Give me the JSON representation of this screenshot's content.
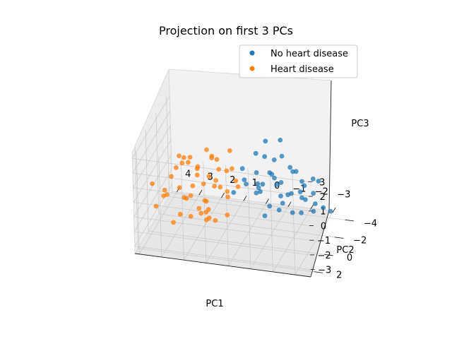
{
  "chart_data": {
    "type": "scatter",
    "projection": "3d",
    "title": "Projection on first 3 PCs",
    "xlabel": "PC1",
    "ylabel": "PC2",
    "zlabel": "PC3",
    "xlim": [
      -3.7,
      4.2
    ],
    "ylim": [
      -4.6,
      2.6
    ],
    "zlim": [
      -3.5,
      3.4
    ],
    "xticks": [
      "4",
      "3",
      "2",
      "1",
      "0",
      "−1",
      "−2",
      "−3"
    ],
    "yticks": [
      "−4",
      "−2",
      "0",
      "2"
    ],
    "zticks": [
      "3",
      "2",
      "1",
      "0",
      "−1",
      "−2",
      "−3"
    ],
    "grid": true,
    "legend": "top-right",
    "series": [
      {
        "name": "No heart disease",
        "color": "#1f77b4",
        "points": [
          [
            -2.6,
            -2.8,
            -1.2
          ],
          [
            -2.3,
            -2.4,
            -0.5
          ],
          [
            -2.0,
            -3.1,
            -1.8
          ],
          [
            -1.8,
            -2.0,
            -0.9
          ],
          [
            -1.5,
            -2.6,
            -1.4
          ],
          [
            -1.2,
            -1.8,
            -0.3
          ],
          [
            -1.0,
            -3.3,
            -2.0
          ],
          [
            -0.8,
            -2.2,
            0.2
          ],
          [
            -0.5,
            -1.6,
            -0.8
          ],
          [
            -0.3,
            -2.9,
            -1.1
          ],
          [
            -2.9,
            -1.5,
            -1.6
          ],
          [
            -2.4,
            -1.2,
            -0.2
          ],
          [
            -1.9,
            -3.6,
            -1.0
          ],
          [
            -1.6,
            -1.0,
            0.4
          ],
          [
            -1.3,
            -2.4,
            -1.9
          ],
          [
            -1.1,
            -0.8,
            -1.2
          ],
          [
            -0.7,
            -3.0,
            -0.4
          ],
          [
            -0.4,
            -1.4,
            0.6
          ],
          [
            -0.1,
            -2.5,
            -1.5
          ],
          [
            0.2,
            -1.9,
            -0.6
          ],
          [
            -2.7,
            -3.4,
            -0.7
          ],
          [
            -2.2,
            -2.1,
            -2.2
          ],
          [
            -1.7,
            -2.8,
            0.1
          ],
          [
            -1.4,
            -1.3,
            -1.7
          ],
          [
            -0.9,
            -2.7,
            0.8
          ],
          [
            -0.6,
            -0.9,
            -0.1
          ],
          [
            0.0,
            -3.2,
            -1.3
          ],
          [
            0.4,
            -2.1,
            0.3
          ],
          [
            -3.1,
            -2.5,
            -1.9
          ],
          [
            -2.5,
            -1.7,
            -1.0
          ],
          [
            -2.1,
            -0.9,
            -1.5
          ],
          [
            -1.6,
            -3.8,
            -0.5
          ],
          [
            -1.2,
            -2.9,
            1.0
          ],
          [
            -0.8,
            -1.1,
            -2.1
          ],
          [
            -0.2,
            -2.2,
            1.4
          ],
          [
            0.5,
            -2.8,
            -0.9
          ],
          [
            -3.3,
            -3.0,
            -2.4
          ],
          [
            -2.8,
            -2.0,
            0.3
          ],
          [
            -1.9,
            -1.5,
            1.2
          ],
          [
            -1.0,
            -3.5,
            1.7
          ],
          [
            -0.6,
            -2.4,
            2.2
          ],
          [
            0.7,
            -1.6,
            -1.1
          ],
          [
            -2.4,
            -3.9,
            -2.6
          ],
          [
            -1.4,
            -0.6,
            0.9
          ],
          [
            -0.3,
            -3.4,
            0.5
          ]
        ]
      },
      {
        "name": "Heart disease",
        "color": "#ff7f0e",
        "points": [
          [
            2.5,
            1.0,
            0.4
          ],
          [
            2.1,
            0.6,
            -0.3
          ],
          [
            1.8,
            1.4,
            0.9
          ],
          [
            1.5,
            0.2,
            -0.8
          ],
          [
            1.2,
            1.7,
            0.2
          ],
          [
            0.9,
            0.8,
            1.1
          ],
          [
            0.6,
            -0.1,
            -0.5
          ],
          [
            0.3,
            1.2,
            0.7
          ],
          [
            2.8,
            0.3,
            1.3
          ],
          [
            2.3,
            1.8,
            -0.9
          ],
          [
            2.0,
            -0.3,
            0.6
          ],
          [
            1.7,
            0.9,
            1.8
          ],
          [
            1.4,
            2.0,
            -0.2
          ],
          [
            1.1,
            -0.6,
            1.0
          ],
          [
            0.8,
            1.5,
            -1.2
          ],
          [
            0.5,
            0.4,
            1.6
          ],
          [
            3.0,
            1.3,
            0.0
          ],
          [
            2.6,
            -0.2,
            -1.0
          ],
          [
            2.2,
            0.5,
            1.9
          ],
          [
            1.9,
            2.2,
            0.5
          ],
          [
            1.6,
            -0.8,
            0.3
          ],
          [
            1.3,
            1.1,
            -1.5
          ],
          [
            1.0,
            0.1,
            2.1
          ],
          [
            0.7,
            1.9,
            1.4
          ],
          [
            0.2,
            -0.4,
            0.1
          ],
          [
            3.3,
            0.7,
            -0.5
          ],
          [
            2.9,
            2.1,
            0.8
          ],
          [
            2.4,
            -0.7,
            1.5
          ],
          [
            1.8,
            0.0,
            -1.8
          ],
          [
            1.5,
            1.6,
            2.4
          ],
          [
            1.2,
            -1.2,
            -0.6
          ],
          [
            0.9,
            2.3,
            0.0
          ],
          [
            0.4,
            0.9,
            -1.1
          ],
          [
            3.5,
            1.9,
            1.0
          ],
          [
            2.7,
            0.1,
            2.0
          ],
          [
            2.0,
            1.1,
            -1.4
          ],
          [
            1.6,
            -1.4,
            1.2
          ],
          [
            1.1,
            0.6,
            2.6
          ],
          [
            0.6,
            -1.0,
            0.9
          ],
          [
            3.2,
            -0.4,
            0.2
          ],
          [
            2.5,
            2.3,
            -1.2
          ],
          [
            1.9,
            -1.0,
            -0.4
          ],
          [
            1.4,
            0.3,
            2.8
          ],
          [
            0.8,
            -1.5,
            1.8
          ],
          [
            3.7,
            0.5,
            -1.4
          ],
          [
            2.2,
            1.6,
            2.5
          ],
          [
            1.7,
            -0.5,
            -2.0
          ],
          [
            1.0,
            1.8,
            -0.9
          ],
          [
            0.1,
            0.4,
            1.0
          ],
          [
            2.8,
            -1.2,
            1.1
          ]
        ]
      }
    ]
  }
}
